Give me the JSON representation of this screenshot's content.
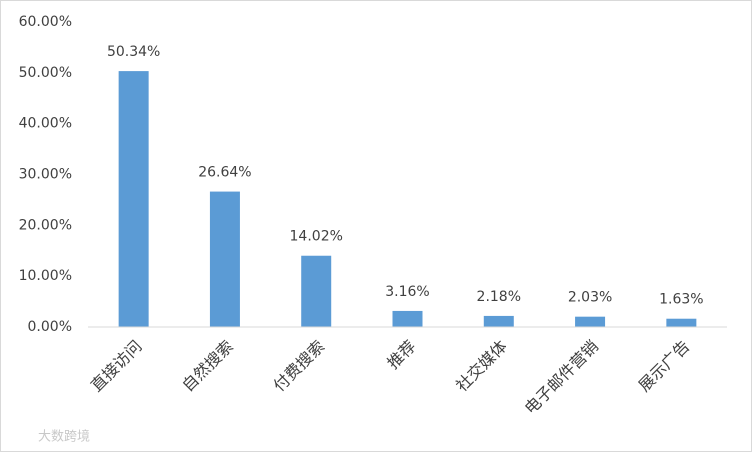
{
  "chart_data": {
    "type": "bar",
    "categories": [
      "直接访问",
      "自然搜索",
      "付费搜索",
      "推荐",
      "社交媒体",
      "电子邮件营销",
      "展示广告"
    ],
    "values": [
      50.34,
      26.64,
      14.02,
      3.16,
      2.18,
      2.03,
      1.63
    ],
    "value_labels": [
      "50.34%",
      "26.64%",
      "14.02%",
      "3.16%",
      "2.18%",
      "2.03%",
      "1.63%"
    ],
    "color": "#5b9bd5",
    "ylim": [
      0,
      60
    ],
    "yticks": [
      {
        "value": 0,
        "label": "0.00%"
      },
      {
        "value": 10,
        "label": "10.00%"
      },
      {
        "value": 20,
        "label": "20.00%"
      },
      {
        "value": 30,
        "label": "30.00%"
      },
      {
        "value": 40,
        "label": "40.00%"
      },
      {
        "value": 50,
        "label": "50.00%"
      },
      {
        "value": 60,
        "label": "60.00%"
      }
    ],
    "grid": false,
    "watermark": "大数跨境"
  }
}
